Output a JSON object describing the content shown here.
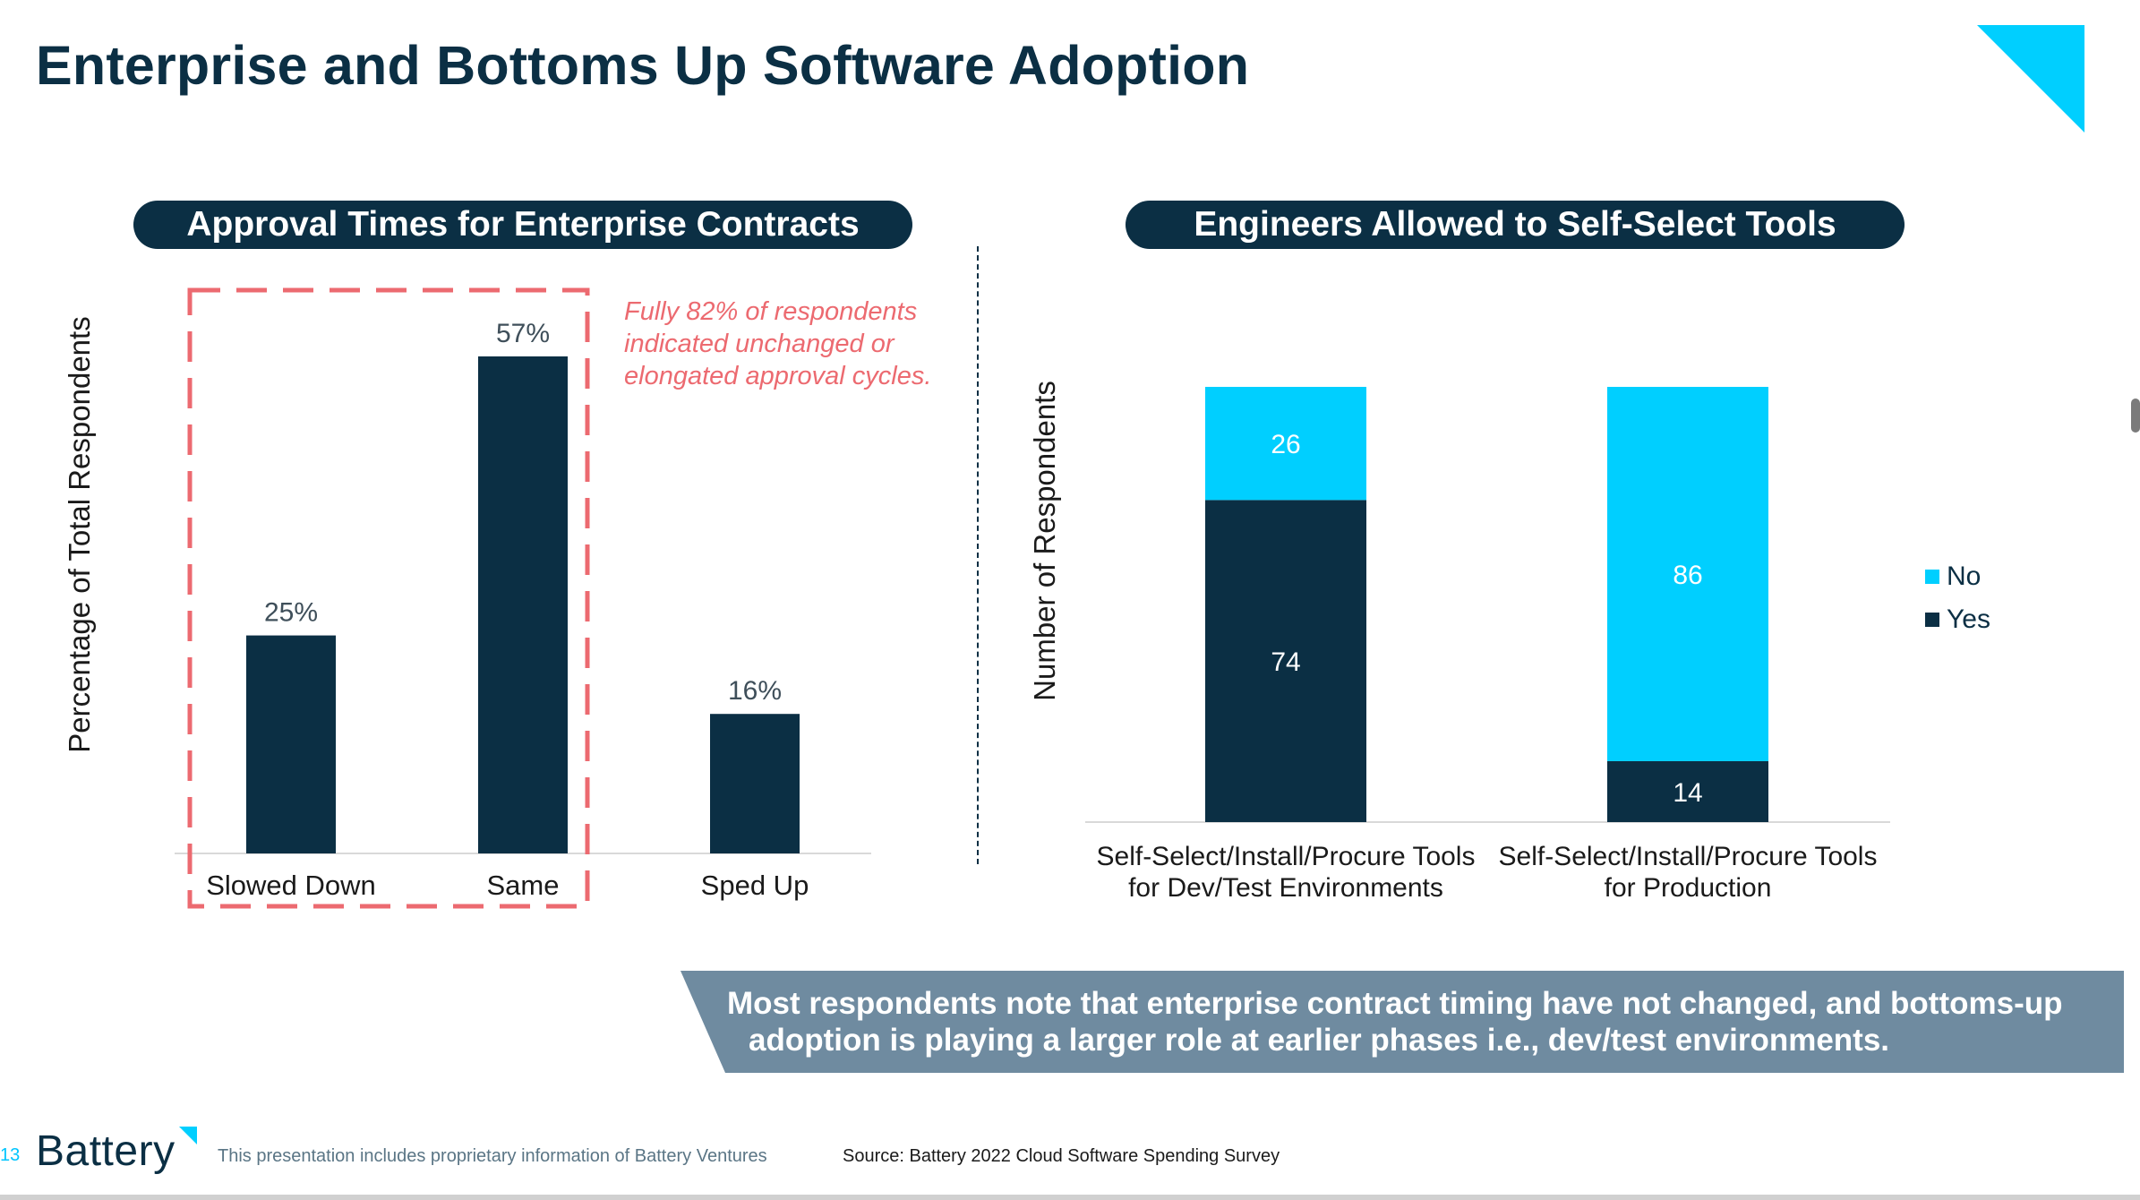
{
  "slide": {
    "title": "Enterprise and Bottoms Up Software Adoption",
    "page_number": "13",
    "brand": "Battery",
    "disclaimer": "This presentation includes proprietary information of Battery Ventures",
    "source": "Source: Battery 2022 Cloud Software Spending Survey",
    "banner": {
      "line1": "Most respondents note that enterprise contract timing have not changed, and bottoms-up",
      "line2": "adoption is playing a larger role at earlier phases i.e., dev/test environments."
    },
    "colors": {
      "navy": "#0b2f44",
      "cyan": "#00cfff",
      "highlight": "#ec6a70",
      "banner": "#6f8ba0"
    }
  },
  "chart_data": [
    {
      "type": "bar",
      "title": "Approval Times for Enterprise Contracts",
      "ylabel": "Percentage of Total Respondents",
      "categories": [
        "Slowed Down",
        "Same",
        "Sped Up"
      ],
      "values": [
        25,
        57,
        16
      ],
      "data_labels": [
        "25%",
        "57%",
        "16%"
      ],
      "ylim": [
        0,
        60
      ],
      "grid": false,
      "annotation": "Fully 82% of respondents indicated unchanged or elongated approval cycles.",
      "highlighted_categories": [
        "Slowed Down",
        "Same"
      ]
    },
    {
      "type": "bar",
      "stacked": true,
      "title": "Engineers Allowed to Self-Select Tools",
      "ylabel": "Number of Respondents",
      "categories": [
        [
          "Self-Select/Install/Procure Tools",
          "for Dev/Test Environments"
        ],
        [
          "Self-Select/Install/Procure Tools",
          "for Production"
        ]
      ],
      "series": [
        {
          "name": "Yes",
          "values": [
            74,
            14
          ],
          "color": "#0b2f44"
        },
        {
          "name": "No",
          "values": [
            26,
            86
          ],
          "color": "#00cfff"
        }
      ],
      "legend_order": [
        "No",
        "Yes"
      ],
      "ylim": [
        0,
        100
      ],
      "grid": false,
      "legend": "right"
    }
  ]
}
